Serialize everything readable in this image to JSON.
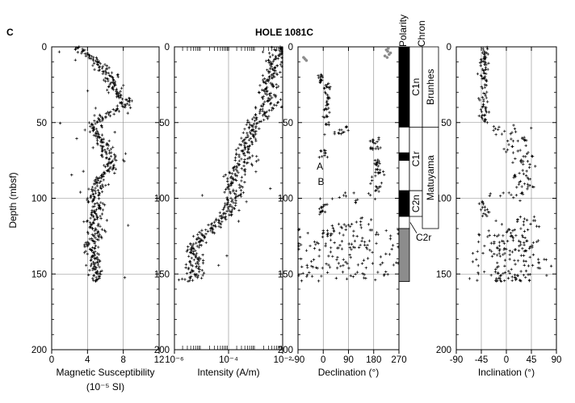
{
  "figure": {
    "panel_letter": "C",
    "title": "HOLE 1081C"
  },
  "depth_axis": {
    "label": "Depth (mbsf)",
    "ticks": [
      0,
      50,
      100,
      150,
      200
    ],
    "range": [
      0,
      200
    ],
    "inverted": true
  },
  "chart_data": [
    {
      "id": "susceptibility",
      "type": "scatter",
      "xlabel": "Magnetic Susceptibility",
      "xlabel2": "(10⁻⁵ SI)",
      "xlim": [
        0,
        12
      ],
      "x_ticks": [
        0,
        4,
        8,
        12
      ],
      "x_tick_labels": [
        "0",
        "4",
        "8",
        "12"
      ],
      "grid": true,
      "marker_color": "#000000",
      "trend": [
        [
          0,
          2.6
        ],
        [
          5,
          3.9
        ],
        [
          10,
          5.1
        ],
        [
          15,
          5.7
        ],
        [
          20,
          6.7
        ],
        [
          25,
          6.9
        ],
        [
          30,
          7.1
        ],
        [
          35,
          8.2
        ],
        [
          40,
          7.8
        ],
        [
          45,
          6.3
        ],
        [
          50,
          4.9
        ],
        [
          55,
          4.6
        ],
        [
          60,
          5.4
        ],
        [
          65,
          5.8
        ],
        [
          70,
          6.2
        ],
        [
          75,
          7.1
        ],
        [
          80,
          6.3
        ],
        [
          85,
          5.6
        ],
        [
          90,
          5.3
        ],
        [
          95,
          4.9
        ],
        [
          100,
          4.6
        ],
        [
          105,
          5.0
        ],
        [
          110,
          4.9
        ],
        [
          115,
          4.6
        ],
        [
          120,
          4.9
        ],
        [
          125,
          5.0
        ],
        [
          130,
          4.2
        ],
        [
          135,
          4.4
        ],
        [
          140,
          4.6
        ],
        [
          145,
          4.8
        ],
        [
          150,
          4.9
        ],
        [
          155,
          5.0
        ]
      ],
      "depth_range": [
        0,
        155
      ]
    },
    {
      "id": "intensity",
      "type": "scatter",
      "xlabel": "Intensity (A/m)",
      "x_scale": "log",
      "xlim": [
        1e-06,
        0.01
      ],
      "x_ticks": [
        1e-06,
        0.0001,
        0.01
      ],
      "x_tick_labels": [
        "10⁻⁶",
        "10⁻⁴",
        "10⁻²"
      ],
      "grid": true,
      "marker_color": "#000000",
      "trend": [
        [
          0,
          0.008
        ],
        [
          5,
          0.006
        ],
        [
          10,
          0.0045
        ],
        [
          15,
          0.0052
        ],
        [
          20,
          0.0038
        ],
        [
          25,
          0.0032
        ],
        [
          30,
          0.0028
        ],
        [
          35,
          0.0034
        ],
        [
          40,
          0.0025
        ],
        [
          45,
          0.0018
        ],
        [
          50,
          0.0008
        ],
        [
          55,
          0.0006
        ],
        [
          60,
          0.0007
        ],
        [
          65,
          0.0005
        ],
        [
          70,
          0.0004
        ],
        [
          75,
          0.00045
        ],
        [
          80,
          0.00025
        ],
        [
          85,
          0.00018
        ],
        [
          90,
          0.00015
        ],
        [
          95,
          0.0002
        ],
        [
          100,
          0.00015
        ],
        [
          105,
          0.00012
        ],
        [
          110,
          8e-05
        ],
        [
          115,
          5e-05
        ],
        [
          120,
          2.5e-05
        ],
        [
          125,
          1.2e-05
        ],
        [
          130,
          6e-06
        ],
        [
          135,
          5e-06
        ],
        [
          140,
          8e-06
        ],
        [
          145,
          6e-06
        ],
        [
          150,
          5e-06
        ],
        [
          155,
          4e-06
        ]
      ],
      "depth_range": [
        0,
        155
      ]
    },
    {
      "id": "declination",
      "type": "scatter",
      "xlabel": "Declination (°)",
      "xlim": [
        -90,
        270
      ],
      "x_ticks": [
        -90,
        0,
        90,
        180,
        270
      ],
      "x_tick_labels": [
        "-90",
        "0",
        "90",
        "180",
        "270"
      ],
      "grid": true,
      "marker_color": "#000000",
      "aux_color": "#8c8c8c",
      "clusters": [
        {
          "d": [
            18,
            24
          ],
          "x": -10,
          "s": 4,
          "n": 14
        },
        {
          "d": [
            24,
            52
          ],
          "x": 15,
          "s": 6,
          "n": 40
        },
        {
          "d": [
            52,
            58
          ],
          "x": 60,
          "s": 25,
          "n": 14
        },
        {
          "d": [
            58,
            68
          ],
          "x": 185,
          "s": 10,
          "n": 18
        },
        {
          "d": [
            68,
            73
          ],
          "x": 0,
          "s": 8,
          "n": 10
        },
        {
          "d": [
            73,
            82
          ],
          "x": 190,
          "s": 8,
          "n": 16
        },
        {
          "d": [
            82,
            96
          ],
          "x": 195,
          "s": 10,
          "n": 20
        },
        {
          "d": [
            96,
            103
          ],
          "x": 110,
          "s": 50,
          "n": 14
        },
        {
          "d": [
            103,
            112
          ],
          "x": 0,
          "s": 10,
          "n": 16
        },
        {
          "d": [
            112,
            120
          ],
          "x": 90,
          "s": 35,
          "n": 18
        },
        {
          "d": [
            120,
            155
          ],
          "x": 90,
          "s": 95,
          "n": 150
        }
      ],
      "gray_points": [
        [
          8,
          -65
        ],
        [
          9,
          -60
        ],
        [
          7,
          -70
        ],
        [
          2,
          225
        ],
        [
          3,
          230
        ],
        [
          5,
          235
        ],
        [
          6,
          220
        ],
        [
          4,
          240
        ],
        [
          1,
          232
        ],
        [
          7,
          228
        ]
      ],
      "annotations": [
        {
          "text": "A",
          "depth": 79,
          "x": -12
        },
        {
          "text": "B",
          "depth": 89,
          "x": -8
        }
      ]
    },
    {
      "id": "inclination",
      "type": "scatter",
      "xlabel": "Inclination (°)",
      "xlim": [
        -90,
        90
      ],
      "x_ticks": [
        -90,
        -45,
        0,
        45,
        90
      ],
      "x_tick_labels": [
        "-90",
        "-45",
        "0",
        "45",
        "90"
      ],
      "grid": true,
      "marker_color": "#000000",
      "clusters": [
        {
          "d": [
            0,
            50
          ],
          "x": -40,
          "s": 4,
          "n": 90
        },
        {
          "d": [
            50,
            58
          ],
          "x": -10,
          "s": 20,
          "n": 14
        },
        {
          "d": [
            58,
            62
          ],
          "x": 35,
          "s": 10,
          "n": 8
        },
        {
          "d": [
            62,
            70
          ],
          "x": 10,
          "s": 15,
          "n": 14
        },
        {
          "d": [
            70,
            78
          ],
          "x": 30,
          "s": 10,
          "n": 14
        },
        {
          "d": [
            78,
            96
          ],
          "x": 30,
          "s": 10,
          "n": 26
        },
        {
          "d": [
            96,
            102
          ],
          "x": 15,
          "s": 25,
          "n": 12
        },
        {
          "d": [
            102,
            112
          ],
          "x": -40,
          "s": 5,
          "n": 16
        },
        {
          "d": [
            112,
            120
          ],
          "x": 25,
          "s": 20,
          "n": 16
        },
        {
          "d": [
            120,
            155
          ],
          "x": 10,
          "s": 35,
          "n": 160
        }
      ]
    }
  ],
  "magnetostratigraphy": {
    "polarity_label": "Polarity",
    "chron_label": "Chron",
    "polarity_intervals": [
      {
        "top": 0,
        "base": 53,
        "state": "normal"
      },
      {
        "top": 53,
        "base": 70,
        "state": "reversed"
      },
      {
        "top": 70,
        "base": 75,
        "state": "normal"
      },
      {
        "top": 75,
        "base": 95,
        "state": "reversed"
      },
      {
        "top": 95,
        "base": 112,
        "state": "normal"
      },
      {
        "top": 112,
        "base": 120,
        "state": "reversed"
      },
      {
        "top": 120,
        "base": 155,
        "state": "uncertain"
      }
    ],
    "chron_intervals": [
      {
        "top": 0,
        "base": 53,
        "label": "C1n"
      },
      {
        "top": 53,
        "base": 95,
        "label": "C1r"
      },
      {
        "top": 95,
        "base": 112,
        "label": "C2n"
      }
    ],
    "epochs": [
      {
        "top": 0,
        "base": 53,
        "label": "Brunhes"
      },
      {
        "top": 53,
        "base": 120,
        "label": "Matuyama"
      }
    ],
    "c2r_label": "C2r",
    "colors": {
      "normal": "#000000",
      "reversed": "#ffffff",
      "uncertain": "#8c8c8c"
    }
  }
}
